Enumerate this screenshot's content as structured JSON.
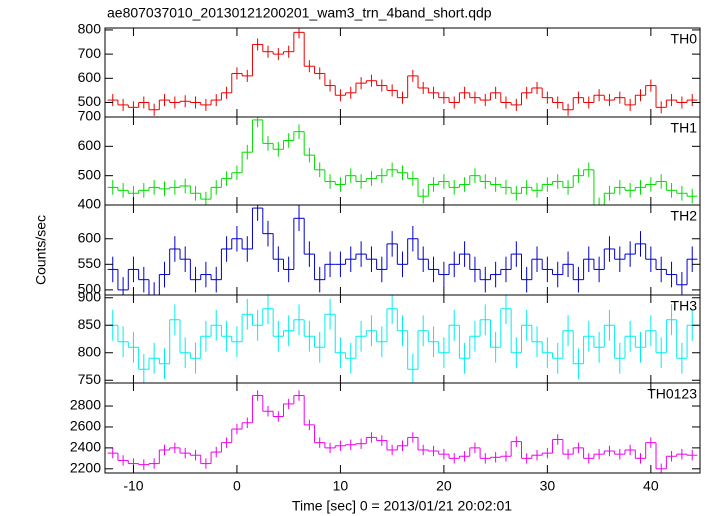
{
  "title": "ae807037010_20130121200201_wam3_trn_4band_short.qdp",
  "x_label": "Time [sec] 0 = 2013/01/21 20:02:01",
  "y_label": "Counts/sec",
  "x": [
    -12,
    -11,
    -10,
    -9,
    -8,
    -7,
    -6,
    -5,
    -4,
    -3,
    -2,
    -1,
    0,
    1,
    2,
    3,
    4,
    5,
    6,
    7,
    8,
    9,
    10,
    11,
    12,
    13,
    14,
    15,
    16,
    17,
    18,
    19,
    20,
    21,
    22,
    23,
    24,
    25,
    26,
    27,
    28,
    29,
    30,
    31,
    32,
    33,
    34,
    35,
    36,
    37,
    38,
    39,
    40,
    41,
    42,
    43,
    44
  ],
  "xlim": [
    -12.75,
    44.75
  ],
  "xticks": [
    -10,
    0,
    10,
    20,
    30,
    40
  ],
  "chart_data": [
    {
      "type": "step",
      "label": "TH0",
      "color": "#ee0000",
      "error": 25,
      "ylim": [
        440,
        808
      ],
      "yticks": [
        500,
        600,
        700,
        800
      ],
      "values": [
        510,
        490,
        480,
        500,
        470,
        510,
        500,
        505,
        500,
        490,
        510,
        540,
        620,
        610,
        740,
        710,
        700,
        710,
        790,
        650,
        620,
        570,
        530,
        540,
        580,
        590,
        570,
        550,
        520,
        610,
        560,
        540,
        520,
        500,
        540,
        520,
        510,
        540,
        500,
        490,
        540,
        560,
        520,
        500,
        470,
        520,
        500,
        530,
        510,
        520,
        490,
        530,
        570,
        480,
        510,
        500,
        510
      ]
    },
    {
      "type": "step",
      "label": "TH1",
      "color": "#00dd00",
      "error": 25,
      "ylim": [
        400,
        700
      ],
      "yticks": [
        400,
        500,
        600,
        700
      ],
      "values": [
        460,
        450,
        440,
        450,
        460,
        455,
        460,
        465,
        440,
        420,
        460,
        490,
        510,
        580,
        690,
        610,
        590,
        620,
        650,
        570,
        520,
        480,
        470,
        500,
        480,
        490,
        500,
        520,
        510,
        490,
        430,
        470,
        480,
        460,
        470,
        500,
        480,
        470,
        460,
        440,
        460,
        450,
        470,
        480,
        460,
        500,
        520,
        400,
        440,
        460,
        450,
        460,
        470,
        480,
        450,
        440,
        430
      ]
    },
    {
      "type": "step",
      "label": "TH2",
      "color": "#0000cc",
      "error": 25,
      "ylim": [
        490,
        666
      ],
      "yticks": [
        500,
        550,
        600
      ],
      "values": [
        540,
        500,
        540,
        520,
        490,
        530,
        580,
        560,
        520,
        530,
        520,
        580,
        600,
        580,
        660,
        610,
        560,
        540,
        640,
        570,
        520,
        550,
        550,
        560,
        570,
        560,
        540,
        590,
        550,
        600,
        560,
        540,
        530,
        550,
        570,
        540,
        520,
        530,
        540,
        570,
        520,
        560,
        540,
        530,
        550,
        520,
        560,
        540,
        580,
        560,
        570,
        590,
        560,
        540,
        530,
        510,
        560
      ]
    },
    {
      "type": "step",
      "label": "TH3",
      "color": "#00eeee",
      "error": 28,
      "ylim": [
        745,
        905
      ],
      "yticks": [
        750,
        800,
        850,
        900
      ],
      "values": [
        850,
        820,
        810,
        770,
        790,
        780,
        860,
        800,
        790,
        830,
        850,
        830,
        820,
        870,
        850,
        880,
        830,
        840,
        860,
        830,
        810,
        870,
        800,
        790,
        830,
        840,
        820,
        880,
        840,
        770,
        840,
        820,
        800,
        850,
        790,
        830,
        860,
        810,
        880,
        800,
        850,
        820,
        800,
        790,
        840,
        780,
        830,
        810,
        850,
        790,
        830,
        810,
        840,
        800,
        860,
        790,
        850
      ]
    },
    {
      "type": "step",
      "label": "TH0123",
      "color": "#ee00ee",
      "error": 50,
      "ylim": [
        2160,
        3020
      ],
      "yticks": [
        2200,
        2400,
        2600,
        2800
      ],
      "values": [
        2350,
        2280,
        2250,
        2240,
        2250,
        2380,
        2400,
        2350,
        2330,
        2250,
        2360,
        2450,
        2580,
        2640,
        2900,
        2750,
        2700,
        2820,
        2900,
        2620,
        2450,
        2400,
        2420,
        2430,
        2440,
        2500,
        2470,
        2380,
        2420,
        2500,
        2380,
        2370,
        2340,
        2300,
        2320,
        2400,
        2300,
        2310,
        2320,
        2460,
        2300,
        2330,
        2350,
        2480,
        2340,
        2400,
        2300,
        2340,
        2370,
        2340,
        2380,
        2300,
        2450,
        2200,
        2320,
        2340,
        2330
      ]
    }
  ]
}
